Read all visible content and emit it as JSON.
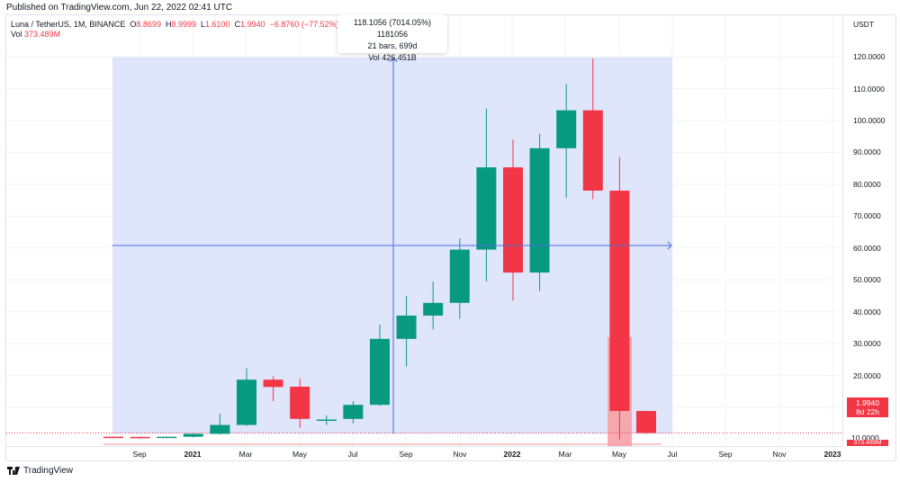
{
  "header": {
    "published": "Published on TradingView.com, Jun 22, 2022 02:41 UTC"
  },
  "legend": {
    "symbol": "Luna / TetherUS, 1M, BINANCE",
    "open_label": "O",
    "open": "8.8699",
    "high_label": "H",
    "high": "8.9999",
    "low_label": "L",
    "low": "1.6100",
    "close_label": "C",
    "close": "1.9940",
    "change": "−6.8760 (−77.52%)",
    "vol_label": "Vol",
    "vol": "373.489M"
  },
  "measure_tooltip": {
    "line1": "118.1056 (7014.05%) 1181056",
    "line2": "21 bars, 699d",
    "line3": "Vol 426.451B"
  },
  "price_axis": {
    "currency": "USDT",
    "last_price": "1.9940",
    "countdown": "8d 22h",
    "volume_label": "373.489M",
    "volume_scale": "10.0000"
  },
  "footer": {
    "brand": "TradingView"
  },
  "colors": {
    "up": "#089981",
    "down": "#f23645",
    "measure_fill": "#dde4fb",
    "measure_line": "#4a6fd6",
    "grid": "#f0f3fa"
  },
  "chart_data": {
    "type": "candlestick",
    "title": "Luna / TetherUS, 1M, BINANCE",
    "ylabel": "USDT",
    "ylim": [
      0,
      125
    ],
    "y_ticks": [
      10,
      20,
      30,
      40,
      50,
      60,
      70,
      80,
      90,
      100,
      110,
      120
    ],
    "x_ticks": [
      "Sep",
      "2021",
      "Mar",
      "May",
      "Jul",
      "Sep",
      "Nov",
      "2022",
      "Mar",
      "May",
      "Jul",
      "Sep",
      "Nov",
      "2023"
    ],
    "candles": [
      {
        "o": 0.8,
        "h": 0.85,
        "l": 0.55,
        "c": 0.6
      },
      {
        "o": 0.75,
        "h": 0.8,
        "l": 0.35,
        "c": 0.4
      },
      {
        "o": 0.45,
        "h": 0.85,
        "l": 0.4,
        "c": 0.8
      },
      {
        "o": 0.8,
        "h": 1.8,
        "l": 0.6,
        "c": 1.7
      },
      {
        "o": 1.7,
        "h": 8.0,
        "l": 1.5,
        "c": 4.5
      },
      {
        "o": 4.5,
        "h": 22.3,
        "l": 4.2,
        "c": 18.7
      },
      {
        "o": 18.7,
        "h": 19.8,
        "l": 12.0,
        "c": 16.4
      },
      {
        "o": 16.5,
        "h": 19.0,
        "l": 3.6,
        "c": 6.4
      },
      {
        "o": 6.0,
        "h": 7.5,
        "l": 4.5,
        "c": 6.2
      },
      {
        "o": 6.4,
        "h": 12.0,
        "l": 5.0,
        "c": 10.8
      },
      {
        "o": 10.8,
        "h": 36.0,
        "l": 10.5,
        "c": 31.5
      },
      {
        "o": 31.5,
        "h": 45.0,
        "l": 22.8,
        "c": 38.8
      },
      {
        "o": 38.8,
        "h": 49.5,
        "l": 34.5,
        "c": 42.8
      },
      {
        "o": 42.8,
        "h": 63.0,
        "l": 37.8,
        "c": 59.5
      },
      {
        "o": 59.5,
        "h": 103.7,
        "l": 49.5,
        "c": 85.3
      },
      {
        "o": 85.3,
        "h": 94.0,
        "l": 43.5,
        "c": 52.3
      },
      {
        "o": 52.3,
        "h": 95.8,
        "l": 46.5,
        "c": 91.3
      },
      {
        "o": 91.3,
        "h": 111.5,
        "l": 75.8,
        "c": 103.2
      },
      {
        "o": 103.2,
        "h": 119.5,
        "l": 75.3,
        "c": 78.0
      },
      {
        "o": 78.0,
        "h": 88.5,
        "l": 0.0,
        "c": 8.87
      },
      {
        "o": 8.87,
        "h": 9.0,
        "l": 1.61,
        "c": 1.99
      }
    ],
    "last_price_line": 1.994,
    "measure_range": {
      "from": 1.7,
      "to": 119.8,
      "bars": 21,
      "days": 699,
      "change_pct": 7014.05
    }
  }
}
